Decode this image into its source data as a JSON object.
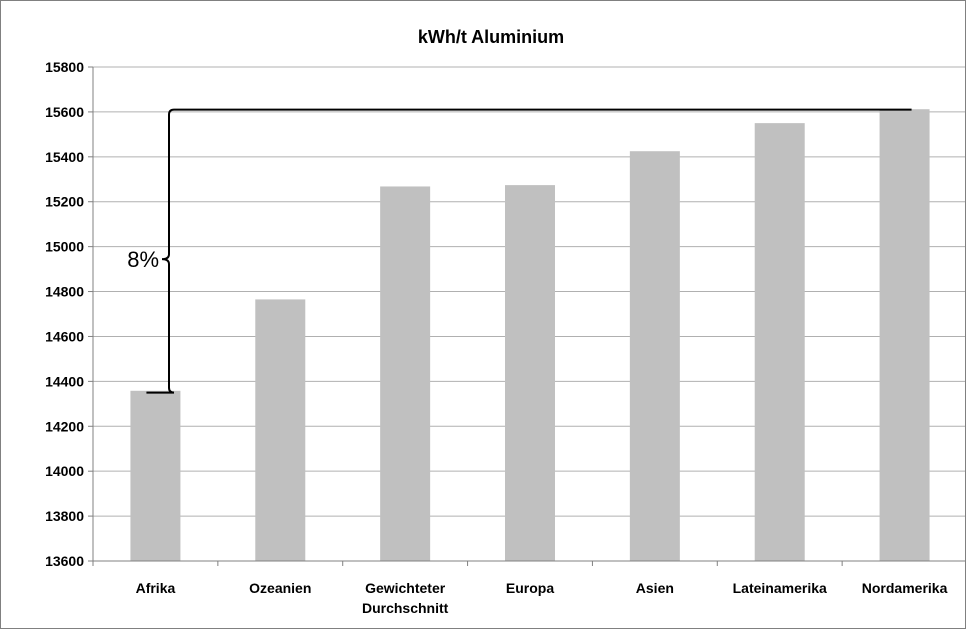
{
  "chart_data": {
    "type": "bar",
    "title": "kWh/t Aluminium",
    "categories": [
      "Afrika",
      "Ozeanien",
      "Gewichteter Durchschnitt",
      "Europa",
      "Asien",
      "Lateinamerika",
      "Nordamerika"
    ],
    "category_lines": [
      [
        "Afrika"
      ],
      [
        "Ozeanien"
      ],
      [
        "Gewichteter",
        "Durchschnitt"
      ],
      [
        "Europa"
      ],
      [
        "Asien"
      ],
      [
        "Lateinamerika"
      ],
      [
        "Nordamerika"
      ]
    ],
    "values": [
      14358,
      14765,
      15268,
      15274,
      15425,
      15550,
      15612
    ],
    "ylim": [
      13600,
      15800
    ],
    "yticks": [
      13600,
      13800,
      14000,
      14200,
      14400,
      14600,
      14800,
      15000,
      15200,
      15400,
      15600,
      15800
    ],
    "grid": true,
    "legend": "none",
    "bar_color": "#c0c0c0",
    "grid_color": "#b0b0b0",
    "annotation": {
      "text": "8%",
      "from_value": 14350,
      "to_value": 15610
    }
  }
}
